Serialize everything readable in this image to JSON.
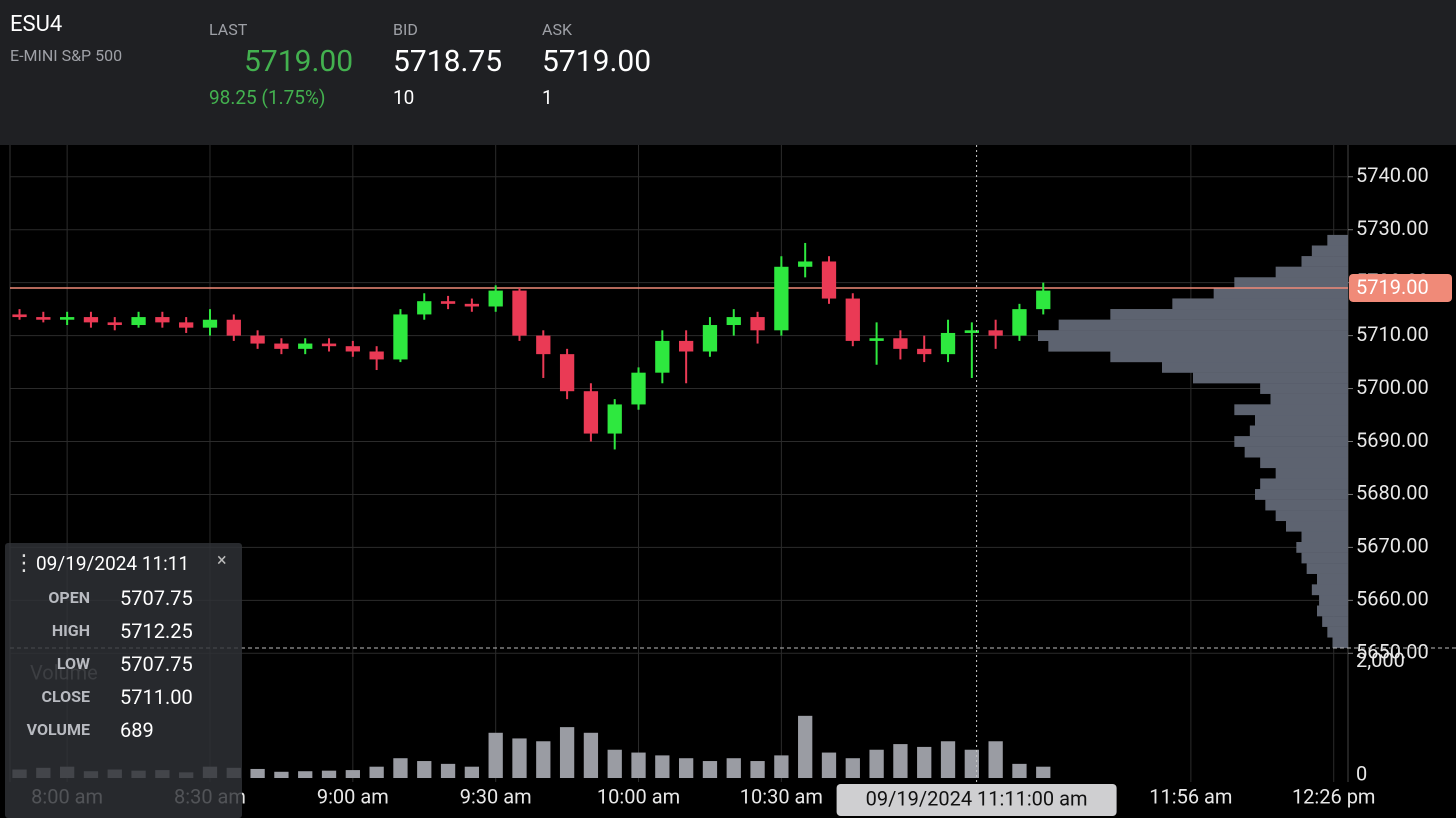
{
  "header": {
    "symbol": "ESU4",
    "name": "E-MINI S&P 500",
    "last": {
      "label": "LAST",
      "price": "5719.00",
      "change": "98.25 (1.75%)"
    },
    "bid": {
      "label": "BID",
      "price": "5718.75",
      "size": "10"
    },
    "ask": {
      "label": "ASK",
      "price": "5719.00",
      "size": "1"
    }
  },
  "chart_data": {
    "type": "candlestick",
    "x": [
      470,
      475,
      480,
      485,
      490,
      495,
      500,
      505,
      510,
      515,
      520,
      525,
      530,
      535,
      540,
      545,
      550,
      555,
      560,
      565,
      570,
      575,
      580,
      585,
      590,
      595,
      600,
      605,
      610,
      615,
      620,
      625,
      630,
      635,
      640,
      645,
      650,
      655,
      660,
      665,
      670,
      675,
      680,
      685
    ],
    "open": [
      5714,
      5713.5,
      5713,
      5713.5,
      5712.5,
      5712,
      5713.5,
      5712.5,
      5711.5,
      5713,
      5710,
      5708.5,
      5707.5,
      5708.5,
      5708,
      5707,
      5705.5,
      5714,
      5716.5,
      5716,
      5715.5,
      5718.5,
      5710,
      5706.5,
      5699.5,
      5691.5,
      5697,
      5703,
      5709,
      5707,
      5712,
      5713.5,
      5711,
      5723,
      5724,
      5717,
      5709,
      5709.5,
      5707.5,
      5706.5,
      5710.5,
      5711,
      5710,
      5715
    ],
    "high": [
      5715,
      5714.5,
      5714.5,
      5714.5,
      5713.5,
      5714.5,
      5714.5,
      5713.5,
      5715,
      5714,
      5711,
      5709.5,
      5709.5,
      5709.5,
      5709,
      5708,
      5715,
      5718,
      5717.5,
      5717,
      5719.5,
      5719,
      5711,
      5707.5,
      5701,
      5698,
      5704,
      5711,
      5711,
      5713.5,
      5715,
      5714.5,
      5725,
      5727.5,
      5725,
      5718,
      5712.5,
      5711,
      5710,
      5713,
      5712.5,
      5713,
      5716,
      5720
    ],
    "low": [
      5713,
      5712.5,
      5712,
      5711.5,
      5711,
      5711.5,
      5711.5,
      5710.5,
      5710,
      5709,
      5707.5,
      5706.5,
      5706.5,
      5707,
      5706,
      5703.5,
      5705,
      5713,
      5715,
      5714.5,
      5714.5,
      5709,
      5702,
      5698,
      5690,
      5688.5,
      5696,
      5701,
      5701,
      5706,
      5710,
      5708.5,
      5710,
      5721,
      5716,
      5708,
      5704.5,
      5705.5,
      5705,
      5705,
      5702,
      5707.5,
      5709,
      5714
    ],
    "close": [
      5713.5,
      5713,
      5713.5,
      5712.5,
      5712,
      5713.5,
      5712.5,
      5711.5,
      5713,
      5710,
      5708.5,
      5707.5,
      5708.5,
      5708,
      5707,
      5705.5,
      5714,
      5716.5,
      5716,
      5715.5,
      5718.5,
      5710,
      5706.5,
      5699.5,
      5691.5,
      5697,
      5703,
      5709,
      5707,
      5712,
      5713.5,
      5711,
      5723,
      5724,
      5717,
      5709,
      5709.5,
      5707.5,
      5706.5,
      5710.5,
      5711,
      5710,
      5715,
      5718.5
    ],
    "up_color": "#2ee83f",
    "down_color": "#ea3a55",
    "xlim": [
      468,
      749
    ],
    "xticks": [
      {
        "value": 480,
        "label": "8:00 am"
      },
      {
        "value": 510,
        "label": "8:30 am"
      },
      {
        "value": 540,
        "label": "9:00 am"
      },
      {
        "value": 570,
        "label": "9:30 am"
      },
      {
        "value": 600,
        "label": "10:00 am"
      },
      {
        "value": 630,
        "label": "10:30 am"
      },
      {
        "value": 716,
        "label": "11:56 am"
      },
      {
        "value": 746,
        "label": "12:26 pm"
      }
    ],
    "ylim": [
      5651,
      5746
    ],
    "yticks": [
      {
        "value": 5740,
        "label": "5740.00"
      },
      {
        "value": 5730,
        "label": "5730.00"
      },
      {
        "value": 5720,
        "label": "5720.00"
      },
      {
        "value": 5710,
        "label": "5710.00"
      },
      {
        "value": 5700,
        "label": "5700.00"
      },
      {
        "value": 5690,
        "label": "5690.00"
      },
      {
        "value": 5680,
        "label": "5680.00"
      },
      {
        "value": 5670,
        "label": "5670.00"
      },
      {
        "value": 5660,
        "label": "5660.00"
      },
      {
        "value": 5650,
        "label": "5650.00"
      }
    ],
    "grid": true,
    "last_price": {
      "value": 5719,
      "label": "5719.00"
    },
    "last_color": "#f08a78",
    "volume": {
      "label": "Volume",
      "color": "#9a9ca3",
      "values": [
        150,
        180,
        200,
        120,
        150,
        130,
        140,
        100,
        200,
        180,
        160,
        110,
        120,
        130,
        140,
        200,
        350,
        300,
        250,
        200,
        800,
        700,
        650,
        900,
        800,
        500,
        450,
        400,
        350,
        300,
        350,
        300,
        400,
        1100,
        450,
        350,
        500,
        600,
        550,
        650,
        500,
        650,
        250,
        200
      ],
      "ylim": [
        0,
        2300
      ],
      "yticks": [
        {
          "value": 2000,
          "label": "2,000"
        },
        0
      ]
    },
    "profile": {
      "color": "#5d6370",
      "prices": [
        5652,
        5654,
        5656,
        5658,
        5660,
        5662,
        5664,
        5666,
        5668,
        5670,
        5672,
        5674,
        5676,
        5678,
        5680,
        5682,
        5684,
        5686,
        5688,
        5690,
        5692,
        5694,
        5696,
        5698,
        5700,
        5702,
        5704,
        5706,
        5708,
        5710,
        5712,
        5714,
        5716,
        5718,
        5720,
        5722,
        5724,
        5726,
        5728
      ],
      "values": [
        15,
        20,
        25,
        30,
        28,
        35,
        30,
        40,
        45,
        50,
        45,
        60,
        70,
        80,
        90,
        85,
        70,
        85,
        100,
        110,
        95,
        90,
        110,
        75,
        85,
        150,
        180,
        230,
        290,
        300,
        280,
        230,
        170,
        130,
        110,
        70,
        45,
        35,
        20
      ]
    },
    "crosshair": {
      "x": 671,
      "label": "09/19/2024 11:11:00 am"
    }
  },
  "tooltip": {
    "title": "09/19/2024 11:11",
    "rows": [
      {
        "label": "OPEN",
        "value": "5707.75"
      },
      {
        "label": "HIGH",
        "value": "5712.25"
      },
      {
        "label": "LOW",
        "value": "5707.75"
      },
      {
        "label": "CLOSE",
        "value": "5711.00"
      },
      {
        "label": "VOLUME",
        "value": "689"
      }
    ]
  }
}
